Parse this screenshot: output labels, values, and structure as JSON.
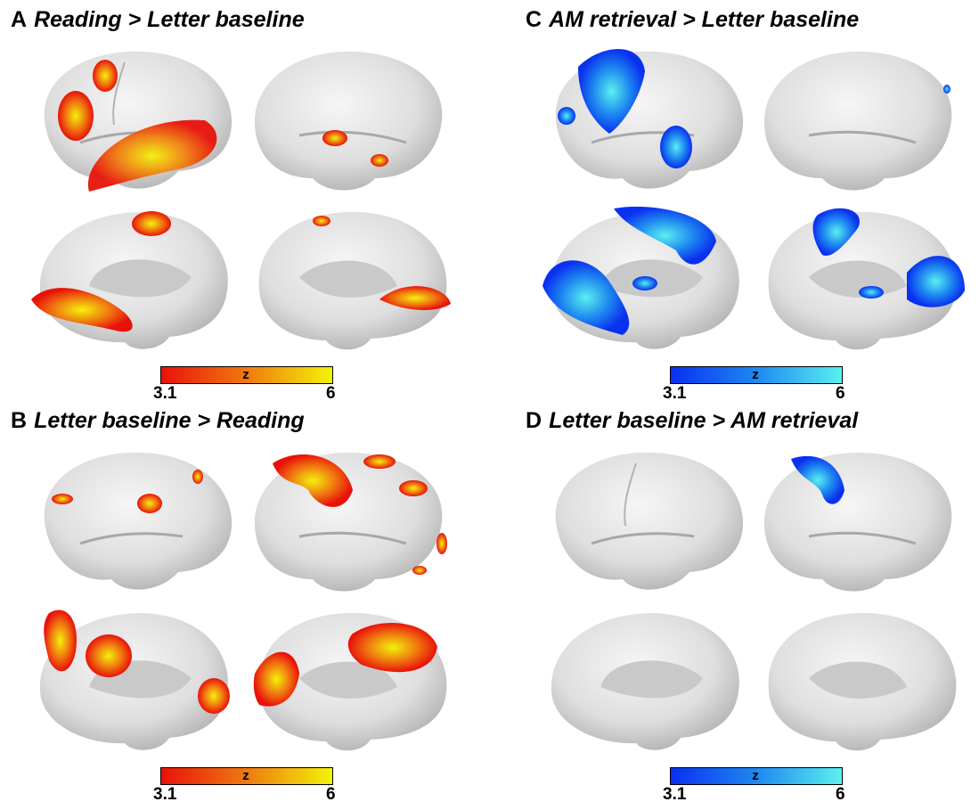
{
  "panels": [
    {
      "letter": "A",
      "title": "Reading > Letter baseline",
      "scale": "warm"
    },
    {
      "letter": "B",
      "title": "Letter baseline > Reading",
      "scale": "warm"
    },
    {
      "letter": "C",
      "title": "AM retrieval > Letter baseline",
      "scale": "cool"
    },
    {
      "letter": "D",
      "title": "Letter baseline > AM retrieval",
      "scale": "cool"
    }
  ],
  "colorbar": {
    "label": "z",
    "min": "3.1",
    "max": "6"
  },
  "colors": {
    "warm_low": "#e8120a",
    "warm_mid": "#f07a10",
    "warm_high": "#f2f20a",
    "cool_low": "#0a30f0",
    "cool_mid": "#1e88f0",
    "cool_high": "#5af0f0",
    "cortex": "#d8d8d8"
  },
  "views": [
    "left-lateral",
    "right-lateral",
    "left-medial",
    "right-medial"
  ]
}
